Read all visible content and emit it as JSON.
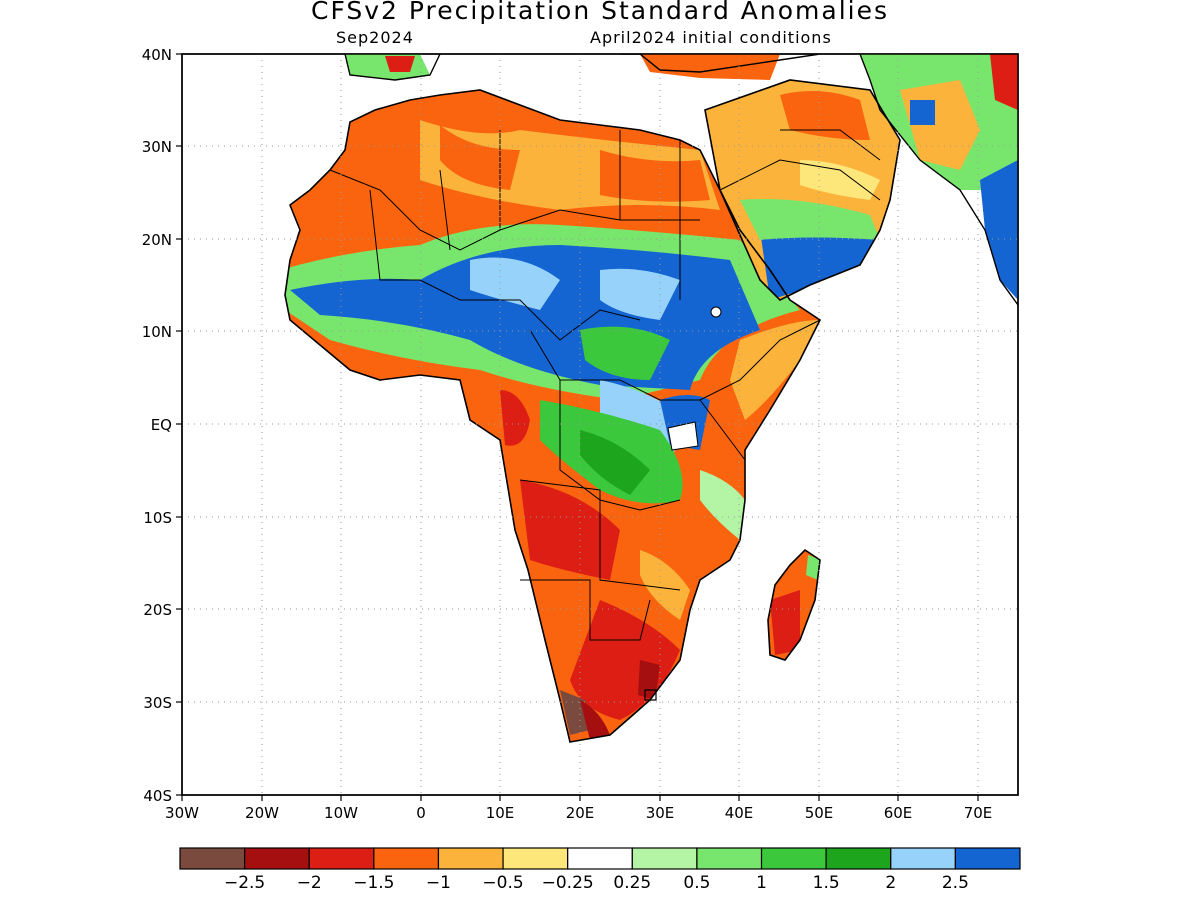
{
  "title": "CFSv2 Precipitation Standard Anomalies",
  "subtitle_left": "Sep2024",
  "subtitle_right": "April2024 initial conditions",
  "lat_labels": [
    "40N",
    "30N",
    "20N",
    "10N",
    "EQ",
    "10S",
    "20S",
    "30S",
    "40S"
  ],
  "lon_labels": [
    "30W",
    "20W",
    "10W",
    "0",
    "10E",
    "20E",
    "30E",
    "40E",
    "50E",
    "60E",
    "70E"
  ],
  "map_extent": {
    "lon_min": -30,
    "lon_max": 75,
    "lat_min": -40,
    "lat_max": 40
  },
  "legend": {
    "colors": [
      "#7a4a3f",
      "#a50f0f",
      "#dc1e14",
      "#fa640f",
      "#fbb33c",
      "#fde67a",
      "#ffffff",
      "#b4f5a5",
      "#78e66c",
      "#3cc83c",
      "#1ea51e",
      "#96d2fa",
      "#1464d2"
    ],
    "labels": [
      "−2.5",
      "−2",
      "−1.5",
      "−1",
      "−0.5",
      "−0.25",
      "0.25",
      "0.5",
      "1",
      "1.5",
      "2",
      "2.5"
    ]
  }
}
